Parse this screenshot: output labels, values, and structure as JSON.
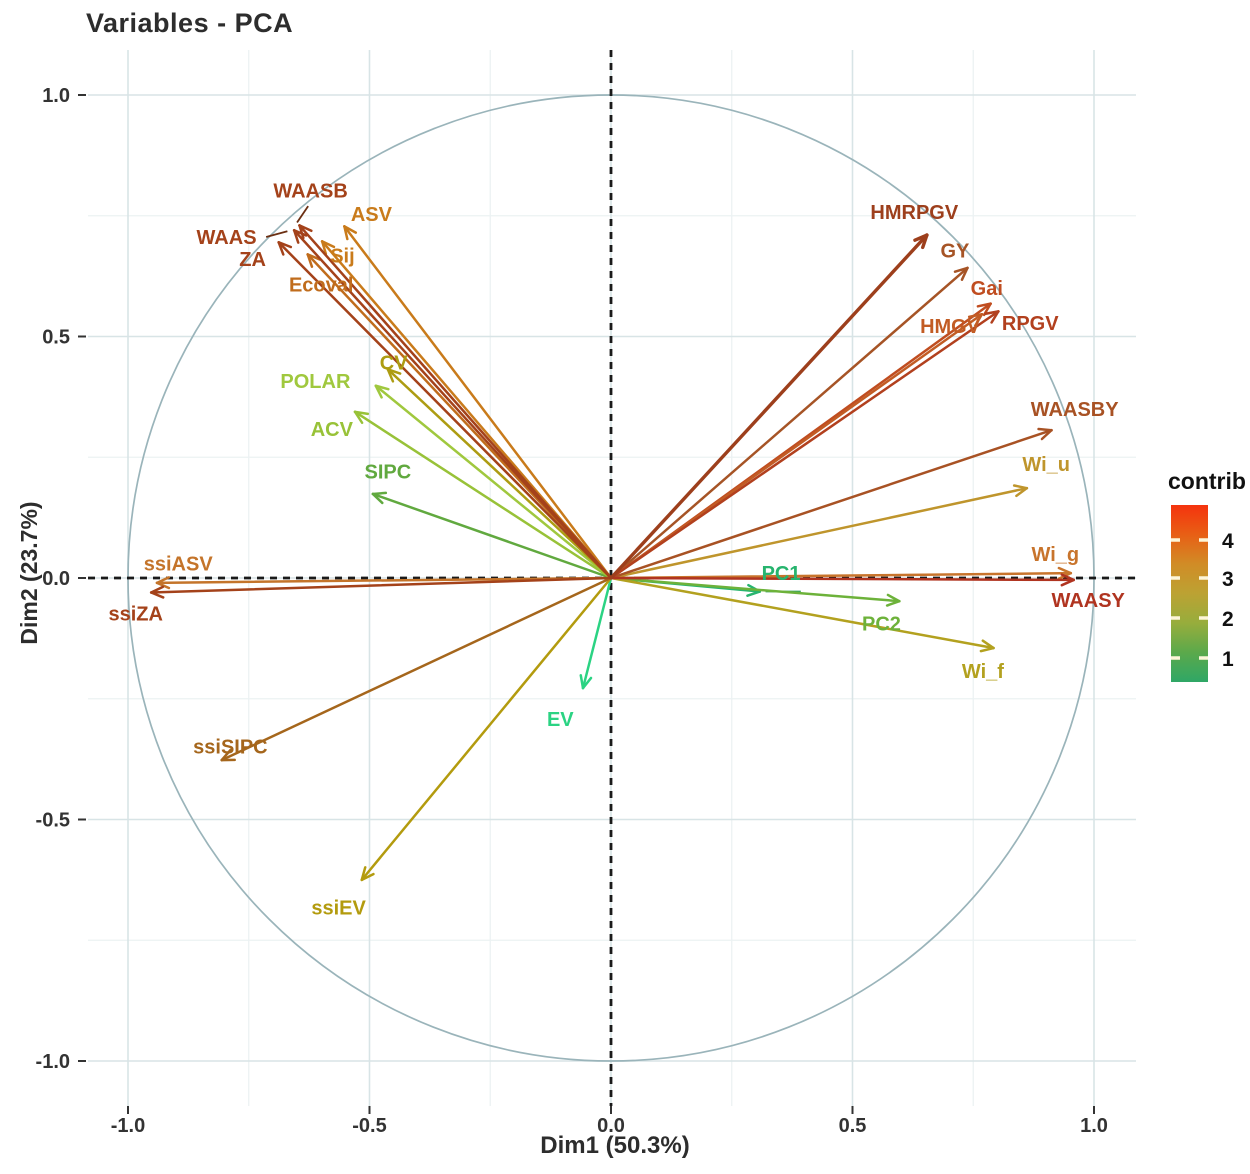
{
  "title": "Variables - PCA",
  "axes": {
    "x": {
      "label": "Dim1 (50.3%)",
      "tick_values": [
        -1.0,
        -0.5,
        0.0,
        0.5,
        1.0
      ],
      "tick_labels": [
        "-1.0",
        "-0.5",
        "0.0",
        "0.5",
        "1.0"
      ],
      "range": [
        -1.09,
        1.09
      ]
    },
    "y": {
      "label": "Dim2 (23.7%)",
      "tick_values": [
        -1.0,
        -0.5,
        0.0,
        0.5,
        1.0
      ],
      "tick_labels": [
        "-1.0",
        "-0.5",
        "0.0",
        "0.5",
        "1.0"
      ],
      "range": [
        -1.09,
        1.09
      ]
    }
  },
  "legend": {
    "title": "contrib",
    "tick_values": [
      4,
      3,
      2,
      1
    ],
    "tick_labels": [
      "4",
      "3",
      "2",
      "1"
    ],
    "gradient_top_to_bottom": [
      "#f5330e",
      "#e85f15",
      "#d18c26",
      "#bca233",
      "#97ad3c",
      "#5ba94b",
      "#2fa766"
    ]
  },
  "chart_data": {
    "type": "scatter",
    "subtype": "pca-variable-correlation-circle",
    "title": "Variables - PCA",
    "xlabel": "Dim1 (50.3%)",
    "ylabel": "Dim2 (23.7%)",
    "xlim": [
      -1.09,
      1.09
    ],
    "ylim": [
      -1.09,
      1.09
    ],
    "grid": true,
    "unit_circle": true,
    "dashed_zero_lines": true,
    "colorbar": {
      "title": "contrib",
      "ticks": [
        4,
        3,
        2,
        1
      ],
      "low_color": "#2fa766",
      "mid_color": "#bca233",
      "high_color": "#f5330e"
    },
    "minor_grid_values": [
      -0.75,
      -0.25,
      0.25,
      0.75
    ],
    "variables": [
      {
        "name": "EV",
        "x": -0.058,
        "y": -0.228,
        "color": "#2bd383",
        "label": {
          "x": -0.105,
          "y": -0.292
        }
      },
      {
        "name": "PC1",
        "x": 0.308,
        "y": -0.028,
        "color": "#27b46e",
        "label": {
          "x": 0.352,
          "y": 0.01
        }
      },
      {
        "name": "PC2",
        "x": 0.597,
        "y": -0.048,
        "color": "#6db23a",
        "label": {
          "x": 0.56,
          "y": -0.094
        }
      },
      {
        "name": "SIPC",
        "x": -0.493,
        "y": 0.174,
        "color": "#61a93f",
        "label": {
          "x": -0.462,
          "y": 0.221
        }
      },
      {
        "name": "ACV",
        "x": -0.53,
        "y": 0.344,
        "color": "#98c238",
        "label": {
          "x": -0.578,
          "y": 0.308
        }
      },
      {
        "name": "POLAR",
        "x": -0.487,
        "y": 0.398,
        "color": "#a0c83e",
        "label": {
          "x": -0.612,
          "y": 0.408
        }
      },
      {
        "name": "CV",
        "x": -0.462,
        "y": 0.432,
        "color": "#ad9c12",
        "label": {
          "x": -0.45,
          "y": 0.446
        }
      },
      {
        "name": "ssiEV",
        "x": -0.516,
        "y": -0.625,
        "color": "#b39b0e",
        "label": {
          "x": -0.564,
          "y": -0.682
        }
      },
      {
        "name": "Wi_f",
        "x": 0.792,
        "y": -0.145,
        "color": "#b3a11f",
        "label": {
          "x": 0.77,
          "y": -0.193
        }
      },
      {
        "name": "Wi_u",
        "x": 0.861,
        "y": 0.186,
        "color": "#bf952c",
        "label": {
          "x": 0.901,
          "y": 0.236
        }
      },
      {
        "name": "ssiSIPC",
        "x": -0.806,
        "y": -0.377,
        "color": "#a5661c",
        "label": {
          "x": -0.788,
          "y": -0.349
        }
      },
      {
        "name": "Ecoval",
        "x": -0.628,
        "y": 0.67,
        "color": "#c06c1c",
        "label": {
          "x": -0.6,
          "y": 0.608
        }
      },
      {
        "name": "Sij",
        "x": -0.598,
        "y": 0.697,
        "color": "#c97b1b",
        "label": {
          "x": -0.556,
          "y": 0.668
        }
      },
      {
        "name": "ASV",
        "x": -0.552,
        "y": 0.728,
        "color": "#c97b1b",
        "label": {
          "x": -0.496,
          "y": 0.754
        }
      },
      {
        "name": "ssiASV",
        "x": -0.94,
        "y": -0.01,
        "color": "#c4742a",
        "label": {
          "x": -0.896,
          "y": 0.03
        }
      },
      {
        "name": "Wi_g",
        "x": 0.952,
        "y": 0.01,
        "color": "#c8742c",
        "label": {
          "x": 0.92,
          "y": 0.05
        }
      },
      {
        "name": "WAASBY",
        "x": 0.912,
        "y": 0.306,
        "color": "#a85224",
        "label": {
          "x": 0.96,
          "y": 0.35
        }
      },
      {
        "name": "GY",
        "x": 0.738,
        "y": 0.642,
        "color": "#a65426",
        "label": {
          "x": 0.712,
          "y": 0.678
        }
      },
      {
        "name": "Gai",
        "x": 0.786,
        "y": 0.568,
        "color": "#c04d20",
        "label": {
          "x": 0.778,
          "y": 0.6
        }
      },
      {
        "name": "HMGV",
        "x": 0.768,
        "y": 0.546,
        "color": "#c25c24",
        "label": {
          "x": 0.702,
          "y": 0.522
        }
      },
      {
        "name": "RPGV",
        "x": 0.802,
        "y": 0.552,
        "color": "#b2401e",
        "label": {
          "x": 0.868,
          "y": 0.528
        }
      },
      {
        "name": "ZA",
        "x": -0.688,
        "y": 0.695,
        "color": "#a4421a",
        "label": {
          "x": -0.742,
          "y": 0.66
        }
      },
      {
        "name": "WAAS",
        "x": -0.656,
        "y": 0.72,
        "color": "#a4421a",
        "label": {
          "x": -0.796,
          "y": 0.706
        }
      },
      {
        "name": "WAASB",
        "x": -0.645,
        "y": 0.73,
        "color": "#a4421a",
        "label": {
          "x": -0.622,
          "y": 0.802
        }
      },
      {
        "name": "ssiZA",
        "x": -0.952,
        "y": -0.03,
        "color": "#a4421a",
        "label": {
          "x": -0.984,
          "y": -0.074
        }
      },
      {
        "name": "WAASY",
        "x": 0.958,
        "y": -0.004,
        "color": "#b03420",
        "label": {
          "x": 0.988,
          "y": -0.046
        }
      },
      {
        "name": "HMRPGV",
        "x": 0.654,
        "y": 0.71,
        "color": "#9d3f1c",
        "label": {
          "x": 0.628,
          "y": 0.758
        },
        "width": 3.4
      }
    ],
    "label_leader_lines": [
      {
        "x1": -0.627,
        "y1": 0.77,
        "x2": -0.65,
        "y2": 0.736,
        "color": "#6b2f12"
      },
      {
        "x1": -0.714,
        "y1": 0.706,
        "x2": -0.67,
        "y2": 0.718,
        "color": "#6b2f12"
      },
      {
        "x1": 0.32,
        "y1": -0.028,
        "x2": 0.393,
        "y2": -0.028,
        "color": "#3aa55f"
      }
    ]
  },
  "style_colors": {
    "grid_major": "#d8e4e6",
    "grid_minor": "#ecf2f3",
    "circle_stroke": "#9ab4ba",
    "axis_dash": "#1a1a1a",
    "tick_mark": "#333333",
    "tick_text": "#333333"
  }
}
